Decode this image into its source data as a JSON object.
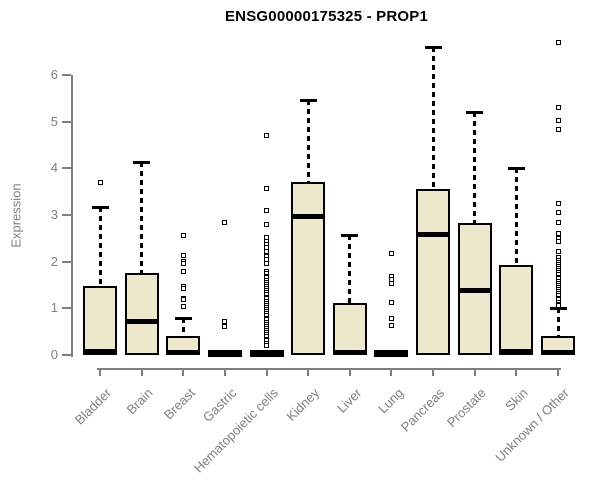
{
  "title": "ENSG00000175325 - PROP1",
  "colors": {
    "background": "#ffffff",
    "box_fill": "#ede7cb",
    "box_border": "#000000",
    "median_line": "#000000",
    "axis": "#7f7f7f",
    "title_text": "#000000"
  },
  "chart_data": {
    "type": "boxplot",
    "title": "ENSG00000175325 - PROP1",
    "xlabel": "",
    "ylabel": "Expression",
    "ylim": [
      0,
      6.8
    ],
    "yticks": [
      0,
      1,
      2,
      3,
      4,
      5,
      6
    ],
    "grid": false,
    "legend": "none",
    "categories": [
      "Bladder",
      "Brain",
      "Breast",
      "Gastric",
      "Hematopoietic cells",
      "Kidney",
      "Liver",
      "Lung",
      "Pancreas",
      "Prostate",
      "Skin",
      "Unknown / Other"
    ],
    "boxes": [
      {
        "category": "Bladder",
        "q1": 0,
        "median": 0.05,
        "q3": 1.48,
        "whisker_low": 0,
        "whisker_high": 3.18,
        "outliers": [
          3.7
        ]
      },
      {
        "category": "Brain",
        "q1": 0,
        "median": 0.69,
        "q3": 1.76,
        "whisker_low": 0,
        "whisker_high": 4.14,
        "outliers": []
      },
      {
        "category": "Breast",
        "q1": 0,
        "median": 0.03,
        "q3": 0.4,
        "whisker_low": 0,
        "whisker_high": 0.79,
        "outliers": [
          2.57,
          2.14,
          2.0,
          1.95,
          1.78,
          1.47,
          1.43,
          1.22,
          1.18,
          1.03
        ]
      },
      {
        "category": "Gastric",
        "q1": 0,
        "median": 0.02,
        "q3": 0.05,
        "whisker_low": 0,
        "whisker_high": 0.05,
        "outliers": [
          2.83,
          0.71,
          0.61
        ]
      },
      {
        "category": "Hematopoietic cells",
        "q1": 0,
        "median": 0.02,
        "q3": 0.05,
        "whisker_low": 0,
        "whisker_high": 0.05,
        "outliers": [
          4.71,
          3.57,
          3.1,
          2.8,
          2.51,
          2.44,
          2.37,
          2.3,
          2.21,
          2.12,
          2.04,
          1.97,
          1.78,
          1.74,
          1.69,
          1.65,
          1.6,
          1.56,
          1.51,
          1.47,
          1.42,
          1.38,
          1.33,
          1.29,
          1.24,
          1.2,
          1.15,
          1.11,
          1.06,
          1.02,
          0.97,
          0.93,
          0.88,
          0.84,
          0.79,
          0.75,
          0.7,
          0.66,
          0.61,
          0.57,
          0.52,
          0.48,
          0.43,
          0.39,
          0.34,
          0.3,
          0.25,
          0.21
        ]
      },
      {
        "category": "Kidney",
        "q1": 0,
        "median": 2.93,
        "q3": 3.7,
        "whisker_low": 0,
        "whisker_high": 5.46,
        "outliers": []
      },
      {
        "category": "Liver",
        "q1": 0,
        "median": 0.03,
        "q3": 1.11,
        "whisker_low": 0,
        "whisker_high": 2.57,
        "outliers": []
      },
      {
        "category": "Lung",
        "q1": 0,
        "median": 0.02,
        "q3": 0.05,
        "whisker_low": 0,
        "whisker_high": 0.05,
        "outliers": [
          2.18,
          1.69,
          1.61,
          1.54,
          1.13,
          0.79,
          0.64
        ]
      },
      {
        "category": "Pancreas",
        "q1": 0,
        "median": 2.55,
        "q3": 3.55,
        "whisker_low": 0,
        "whisker_high": 6.6,
        "outliers": []
      },
      {
        "category": "Prostate",
        "q1": 0,
        "median": 1.35,
        "q3": 2.83,
        "whisker_low": 0,
        "whisker_high": 5.2,
        "outliers": []
      },
      {
        "category": "Skin",
        "q1": 0,
        "median": 0.04,
        "q3": 1.93,
        "whisker_low": 0,
        "whisker_high": 4.0,
        "outliers": []
      },
      {
        "category": "Unknown / Other",
        "q1": 0,
        "median": 0.03,
        "q3": 0.4,
        "whisker_low": 0,
        "whisker_high": 1.01,
        "outliers": [
          6.7,
          5.31,
          5.03,
          4.84,
          3.25,
          3.06,
          2.83,
          2.61,
          2.5,
          2.44,
          2.21,
          2.08,
          2.03,
          1.99,
          1.94,
          1.9,
          1.85,
          1.81,
          1.76,
          1.72,
          1.67,
          1.63,
          1.58,
          1.54,
          1.49,
          1.45,
          1.4,
          1.36,
          1.31,
          1.27,
          1.22,
          1.18,
          1.13,
          1.09,
          1.07
        ]
      }
    ]
  }
}
